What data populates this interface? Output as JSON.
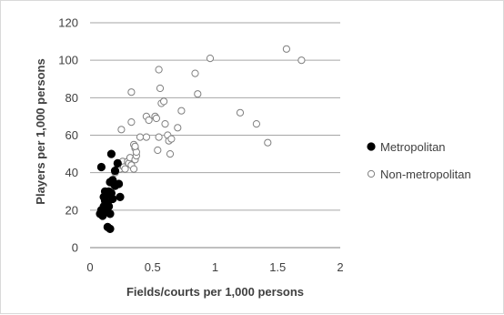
{
  "chart_data": {
    "type": "scatter",
    "xlabel": "Fields/courts per 1,000 persons",
    "ylabel": "Players per  1,000 persons",
    "xlim": [
      0,
      2
    ],
    "ylim": [
      0,
      120
    ],
    "xticks": [
      0,
      0.5,
      1,
      1.5,
      2
    ],
    "xtick_labels": [
      "0",
      "0.5",
      "1",
      "1.5",
      "2"
    ],
    "yticks": [
      0,
      20,
      40,
      60,
      80,
      100,
      120
    ],
    "ytick_labels": [
      "0",
      "20",
      "40",
      "60",
      "80",
      "100",
      "120"
    ],
    "grid": "horizontal",
    "legend": "right",
    "series": [
      {
        "name": "Metropolitan",
        "marker": "filled-circle",
        "color": "#000000",
        "points": [
          [
            0.08,
            18
          ],
          [
            0.09,
            20
          ],
          [
            0.1,
            17
          ],
          [
            0.11,
            22
          ],
          [
            0.12,
            19
          ],
          [
            0.11,
            27
          ],
          [
            0.12,
            25
          ],
          [
            0.13,
            28
          ],
          [
            0.14,
            24
          ],
          [
            0.15,
            22
          ],
          [
            0.16,
            18
          ],
          [
            0.13,
            21
          ],
          [
            0.15,
            30
          ],
          [
            0.17,
            29
          ],
          [
            0.18,
            26
          ],
          [
            0.16,
            35
          ],
          [
            0.18,
            36
          ],
          [
            0.19,
            34
          ],
          [
            0.2,
            41
          ],
          [
            0.22,
            45
          ],
          [
            0.23,
            34
          ],
          [
            0.24,
            27
          ],
          [
            0.17,
            50
          ],
          [
            0.09,
            43
          ],
          [
            0.14,
            11
          ],
          [
            0.16,
            10
          ],
          [
            0.2,
            33
          ],
          [
            0.12,
            30
          ]
        ]
      },
      {
        "name": "Non-metropolitan",
        "marker": "open-circle",
        "color": "#7f7f7f",
        "points": [
          [
            0.2,
            40
          ],
          [
            0.22,
            43
          ],
          [
            0.24,
            42
          ],
          [
            0.25,
            44
          ],
          [
            0.26,
            46
          ],
          [
            0.27,
            43
          ],
          [
            0.28,
            42
          ],
          [
            0.3,
            46
          ],
          [
            0.31,
            45
          ],
          [
            0.32,
            48
          ],
          [
            0.33,
            44
          ],
          [
            0.35,
            42
          ],
          [
            0.36,
            47
          ],
          [
            0.37,
            49
          ],
          [
            0.35,
            55
          ],
          [
            0.36,
            53
          ],
          [
            0.37,
            51
          ],
          [
            0.36,
            54
          ],
          [
            0.25,
            63
          ],
          [
            0.33,
            67
          ],
          [
            0.33,
            83
          ],
          [
            0.4,
            59
          ],
          [
            0.45,
            59
          ],
          [
            0.45,
            70
          ],
          [
            0.47,
            68
          ],
          [
            0.52,
            70
          ],
          [
            0.53,
            69
          ],
          [
            0.55,
            59
          ],
          [
            0.54,
            52
          ],
          [
            0.55,
            95
          ],
          [
            0.56,
            85
          ],
          [
            0.57,
            77
          ],
          [
            0.59,
            78
          ],
          [
            0.6,
            66
          ],
          [
            0.62,
            60
          ],
          [
            0.63,
            57
          ],
          [
            0.65,
            58
          ],
          [
            0.64,
            50
          ],
          [
            0.7,
            64
          ],
          [
            0.73,
            73
          ],
          [
            0.84,
            93
          ],
          [
            0.86,
            82
          ],
          [
            0.96,
            101
          ],
          [
            1.2,
            72
          ],
          [
            1.33,
            66
          ],
          [
            1.42,
            56
          ],
          [
            1.57,
            106
          ],
          [
            1.69,
            100
          ]
        ]
      }
    ]
  }
}
